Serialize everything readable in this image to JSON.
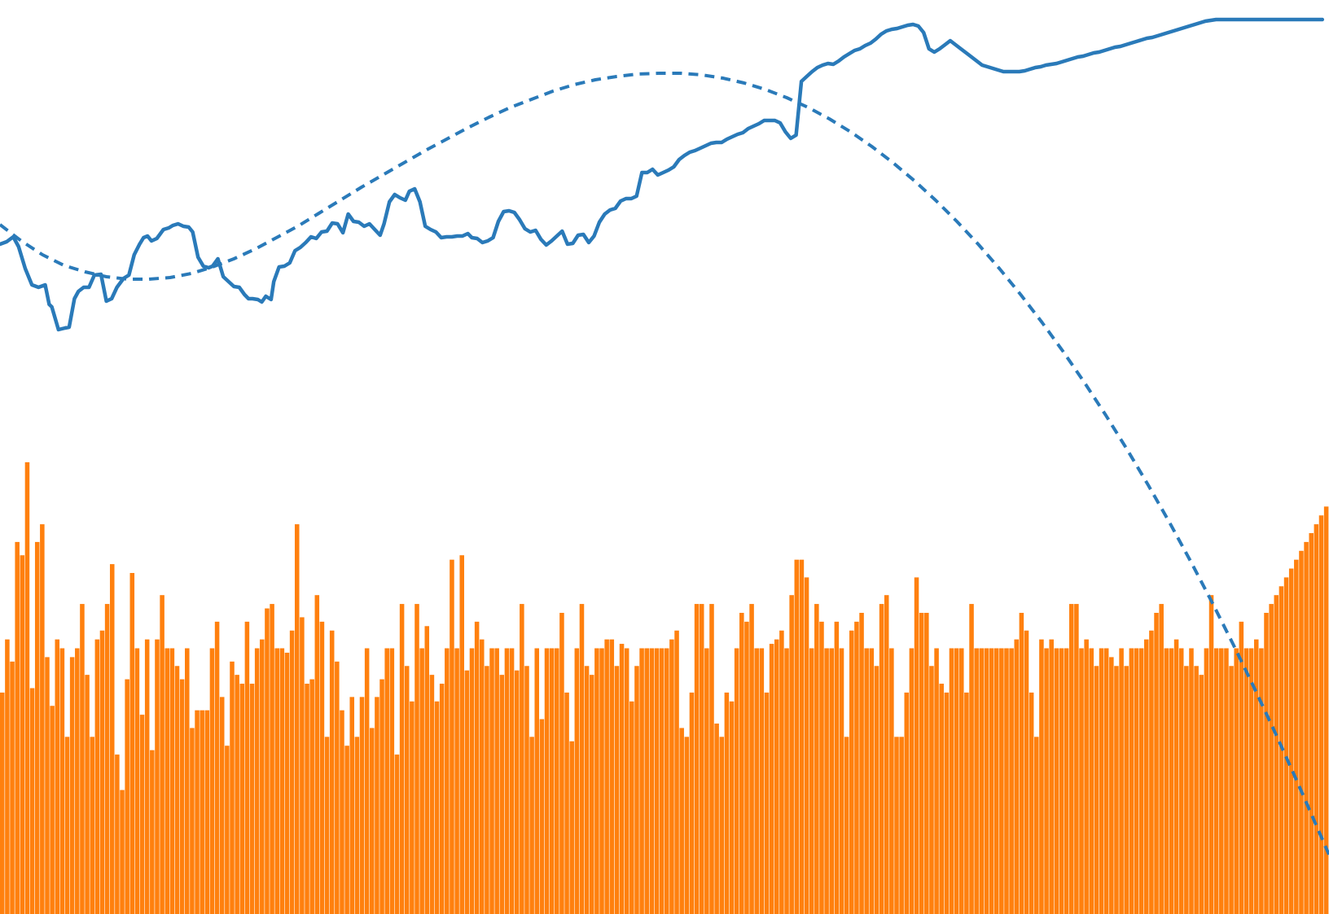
{
  "chart_data": {
    "type": "line",
    "title": "",
    "xlabel": "",
    "ylabel": "",
    "grid": false,
    "legend": "none",
    "x_count": 266,
    "colors": {
      "price": "#2a7ab9",
      "trend": "#2a7ab9",
      "volume": "#ff800e"
    },
    "price_series": [
      [
        0,
        300
      ],
      [
        5,
        297
      ],
      [
        10,
        291
      ],
      [
        14,
        303
      ],
      [
        19,
        330
      ],
      [
        24,
        350
      ],
      [
        29,
        353
      ],
      [
        34,
        350
      ],
      [
        37,
        374
      ],
      [
        39,
        377
      ],
      [
        44,
        405
      ],
      [
        49,
        403
      ],
      [
        52,
        402
      ],
      [
        56,
        367
      ],
      [
        59,
        358
      ],
      [
        63,
        353
      ],
      [
        67,
        353
      ],
      [
        71,
        338
      ],
      [
        76,
        337
      ],
      [
        80,
        370
      ],
      [
        84,
        367
      ],
      [
        88,
        353
      ],
      [
        93,
        342
      ],
      [
        97,
        338
      ],
      [
        101,
        313
      ],
      [
        105,
        300
      ],
      [
        108,
        292
      ],
      [
        111,
        290
      ],
      [
        114,
        296
      ],
      [
        118,
        293
      ],
      [
        123,
        282
      ],
      [
        127,
        280
      ],
      [
        130,
        277
      ],
      [
        134,
        275
      ],
      [
        138,
        278
      ],
      [
        142,
        279
      ],
      [
        145,
        285
      ],
      [
        149,
        316
      ],
      [
        153,
        327
      ],
      [
        157,
        329
      ],
      [
        160,
        327
      ],
      [
        164,
        318
      ],
      [
        168,
        340
      ],
      [
        172,
        346
      ],
      [
        176,
        352
      ],
      [
        180,
        353
      ],
      [
        184,
        362
      ],
      [
        187,
        367
      ],
      [
        190,
        367
      ],
      [
        194,
        368
      ],
      [
        197,
        371
      ],
      [
        200,
        364
      ],
      [
        204,
        368
      ],
      [
        206,
        346
      ],
      [
        210,
        328
      ],
      [
        214,
        327
      ],
      [
        218,
        323
      ],
      [
        222,
        308
      ],
      [
        226,
        304
      ],
      [
        230,
        298
      ],
      [
        234,
        291
      ],
      [
        238,
        293
      ],
      [
        242,
        285
      ],
      [
        246,
        284
      ],
      [
        250,
        274
      ],
      [
        254,
        275
      ],
      [
        258,
        286
      ],
      [
        262,
        263
      ],
      [
        266,
        272
      ],
      [
        270,
        273
      ],
      [
        274,
        278
      ],
      [
        278,
        275
      ],
      [
        282,
        282
      ],
      [
        286,
        289
      ],
      [
        289,
        275
      ],
      [
        293,
        248
      ],
      [
        297,
        239
      ],
      [
        301,
        243
      ],
      [
        305,
        246
      ],
      [
        308,
        235
      ],
      [
        312,
        232
      ],
      [
        316,
        248
      ],
      [
        320,
        278
      ],
      [
        324,
        282
      ],
      [
        328,
        285
      ],
      [
        332,
        292
      ],
      [
        336,
        291
      ],
      [
        340,
        291
      ],
      [
        344,
        290
      ],
      [
        348,
        290
      ],
      [
        352,
        287
      ],
      [
        355,
        292
      ],
      [
        359,
        293
      ],
      [
        363,
        298
      ],
      [
        367,
        296
      ],
      [
        371,
        292
      ],
      [
        375,
        272
      ],
      [
        379,
        260
      ],
      [
        383,
        259
      ],
      [
        387,
        261
      ],
      [
        391,
        270
      ],
      [
        395,
        281
      ],
      [
        399,
        285
      ],
      [
        403,
        283
      ],
      [
        407,
        294
      ],
      [
        411,
        301
      ],
      [
        415,
        296
      ],
      [
        419,
        290
      ],
      [
        423,
        284
      ],
      [
        427,
        300
      ],
      [
        431,
        299
      ],
      [
        435,
        289
      ],
      [
        439,
        288
      ],
      [
        443,
        298
      ],
      [
        447,
        290
      ],
      [
        451,
        273
      ],
      [
        455,
        263
      ],
      [
        459,
        258
      ],
      [
        463,
        256
      ],
      [
        467,
        247
      ],
      [
        471,
        244
      ],
      [
        475,
        244
      ],
      [
        479,
        241
      ],
      [
        483,
        212
      ],
      [
        487,
        212
      ],
      [
        491,
        208
      ],
      [
        495,
        215
      ],
      [
        499,
        212
      ],
      [
        503,
        209
      ],
      [
        507,
        205
      ],
      [
        511,
        196
      ],
      [
        515,
        191
      ],
      [
        519,
        187
      ],
      [
        523,
        185
      ],
      [
        527,
        182
      ],
      [
        531,
        179
      ],
      [
        535,
        176
      ],
      [
        539,
        175
      ],
      [
        543,
        175
      ],
      [
        547,
        171
      ],
      [
        551,
        168
      ],
      [
        555,
        165
      ],
      [
        559,
        163
      ],
      [
        563,
        158
      ],
      [
        567,
        155
      ],
      [
        571,
        152
      ],
      [
        575,
        148
      ],
      [
        579,
        148
      ],
      [
        583,
        148
      ],
      [
        587,
        151
      ],
      [
        591,
        162
      ],
      [
        595,
        170
      ],
      [
        599,
        166
      ],
      [
        603,
        100
      ],
      [
        607,
        94
      ],
      [
        611,
        88
      ],
      [
        615,
        83
      ],
      [
        619,
        80
      ],
      [
        623,
        78
      ],
      [
        627,
        79
      ],
      [
        631,
        75
      ],
      [
        635,
        70
      ],
      [
        639,
        66
      ],
      [
        643,
        62
      ],
      [
        647,
        60
      ],
      [
        651,
        56
      ],
      [
        655,
        53
      ],
      [
        659,
        48
      ],
      [
        663,
        42
      ],
      [
        667,
        38
      ],
      [
        671,
        36
      ],
      [
        675,
        35
      ],
      [
        679,
        33
      ],
      [
        683,
        31
      ],
      [
        687,
        30
      ],
      [
        691,
        32
      ],
      [
        695,
        40
      ],
      [
        699,
        60
      ],
      [
        703,
        64
      ],
      [
        707,
        60
      ],
      [
        711,
        55
      ],
      [
        715,
        50
      ],
      [
        719,
        55
      ],
      [
        723,
        60
      ],
      [
        727,
        65
      ],
      [
        731,
        70
      ],
      [
        735,
        75
      ],
      [
        739,
        80
      ],
      [
        743,
        82
      ],
      [
        747,
        84
      ],
      [
        751,
        86
      ],
      [
        755,
        88
      ],
      [
        759,
        88
      ],
      [
        763,
        88
      ],
      [
        767,
        88
      ],
      [
        771,
        87
      ],
      [
        775,
        85
      ],
      [
        779,
        83
      ],
      [
        783,
        82
      ],
      [
        787,
        80
      ],
      [
        791,
        79
      ],
      [
        795,
        78
      ],
      [
        799,
        76
      ],
      [
        803,
        74
      ],
      [
        807,
        72
      ],
      [
        811,
        70
      ],
      [
        815,
        69
      ],
      [
        819,
        67
      ],
      [
        823,
        65
      ],
      [
        827,
        64
      ],
      [
        831,
        62
      ],
      [
        835,
        60
      ],
      [
        839,
        58
      ],
      [
        843,
        57
      ],
      [
        847,
        55
      ],
      [
        851,
        53
      ],
      [
        855,
        51
      ],
      [
        859,
        49
      ],
      [
        863,
        47
      ],
      [
        867,
        46
      ],
      [
        871,
        44
      ],
      [
        875,
        42
      ],
      [
        879,
        40
      ],
      [
        883,
        38
      ],
      [
        887,
        36
      ],
      [
        891,
        34
      ],
      [
        895,
        32
      ],
      [
        899,
        30
      ],
      [
        903,
        28
      ],
      [
        907,
        26
      ],
      [
        911,
        25
      ],
      [
        915,
        24
      ],
      [
        919,
        24
      ],
      [
        923,
        24
      ],
      [
        927,
        24
      ],
      [
        931,
        24
      ],
      [
        935,
        24
      ],
      [
        939,
        24
      ],
      [
        943,
        24
      ],
      [
        947,
        24
      ],
      [
        951,
        24
      ],
      [
        955,
        24
      ],
      [
        959,
        24
      ],
      [
        963,
        24
      ],
      [
        967,
        24
      ],
      [
        971,
        24
      ],
      [
        975,
        24
      ],
      [
        979,
        24
      ],
      [
        983,
        24
      ],
      [
        987,
        24
      ],
      [
        991,
        24
      ],
      [
        995,
        24
      ]
    ],
    "trend_series": [
      [
        0,
        276
      ],
      [
        16,
        296
      ],
      [
        32,
        313
      ],
      [
        48,
        326
      ],
      [
        64,
        334
      ],
      [
        80,
        340
      ],
      [
        96,
        343
      ],
      [
        112,
        343
      ],
      [
        128,
        341
      ],
      [
        144,
        336
      ],
      [
        160,
        328
      ],
      [
        176,
        318
      ],
      [
        192,
        306
      ],
      [
        208,
        292
      ],
      [
        224,
        278
      ],
      [
        240,
        262
      ],
      [
        256,
        246
      ],
      [
        272,
        230
      ],
      [
        288,
        215
      ],
      [
        304,
        200
      ],
      [
        320,
        185
      ],
      [
        336,
        171
      ],
      [
        352,
        157
      ],
      [
        368,
        144
      ],
      [
        384,
        132
      ],
      [
        400,
        122
      ],
      [
        416,
        112
      ],
      [
        432,
        104
      ],
      [
        448,
        98
      ],
      [
        464,
        94
      ],
      [
        480,
        91
      ],
      [
        496,
        90
      ],
      [
        512,
        90
      ],
      [
        528,
        92
      ],
      [
        544,
        96
      ],
      [
        560,
        102
      ],
      [
        576,
        110
      ],
      [
        592,
        120
      ],
      [
        608,
        132
      ],
      [
        624,
        146
      ],
      [
        640,
        162
      ],
      [
        656,
        180
      ],
      [
        672,
        200
      ],
      [
        688,
        222
      ],
      [
        704,
        246
      ],
      [
        720,
        272
      ],
      [
        736,
        300
      ],
      [
        752,
        330
      ],
      [
        768,
        362
      ],
      [
        784,
        396
      ],
      [
        800,
        432
      ],
      [
        816,
        470
      ],
      [
        832,
        510
      ],
      [
        848,
        552
      ],
      [
        864,
        596
      ],
      [
        880,
        642
      ],
      [
        896,
        690
      ],
      [
        912,
        740
      ],
      [
        928,
        792
      ],
      [
        944,
        846
      ],
      [
        960,
        902
      ],
      [
        976,
        960
      ],
      [
        992,
        1020
      ],
      [
        1000,
        1050
      ]
    ],
    "volume": [
      250,
      310,
      285,
      420,
      405,
      510,
      255,
      420,
      440,
      290,
      235,
      310,
      300,
      200,
      290,
      300,
      350,
      270,
      200,
      310,
      320,
      350,
      395,
      180,
      140,
      265,
      385,
      300,
      225,
      310,
      185,
      310,
      360,
      300,
      300,
      280,
      265,
      300,
      210,
      230,
      230,
      230,
      300,
      330,
      245,
      190,
      285,
      270,
      260,
      330,
      260,
      300,
      310,
      345,
      350,
      300,
      300,
      295,
      320,
      440,
      335,
      260,
      265,
      360,
      330,
      200,
      320,
      285,
      230,
      190,
      245,
      200,
      245,
      300,
      210,
      245,
      265,
      300,
      300,
      180,
      350,
      280,
      240,
      350,
      300,
      325,
      270,
      240,
      260,
      300,
      400,
      300,
      405,
      275,
      300,
      330,
      310,
      280,
      300,
      300,
      270,
      300,
      300,
      275,
      350,
      280,
      200,
      300,
      220,
      300,
      300,
      300,
      340,
      250,
      195,
      300,
      350,
      280,
      270,
      300,
      300,
      310,
      310,
      280,
      305,
      300,
      240,
      280,
      300,
      300,
      300,
      300,
      300,
      300,
      310,
      320,
      210,
      200,
      250,
      350,
      350,
      300,
      350,
      215,
      200,
      250,
      240,
      300,
      340,
      330,
      350,
      300,
      300,
      250,
      305,
      310,
      320,
      300,
      360,
      400,
      400,
      380,
      300,
      350,
      330,
      300,
      300,
      330,
      300,
      200,
      320,
      330,
      340,
      300,
      300,
      280,
      350,
      360,
      300,
      200,
      200,
      250,
      300,
      380,
      340,
      340,
      280,
      300,
      260,
      250,
      300,
      300,
      300,
      250,
      350,
      300,
      300,
      300,
      300,
      300,
      300,
      300,
      300,
      310,
      340,
      320,
      250,
      200,
      310,
      300,
      310,
      300,
      300,
      300,
      350,
      350,
      300,
      310,
      300,
      280,
      300,
      300,
      290,
      280,
      300,
      280,
      300,
      300,
      300,
      310,
      320,
      340,
      350,
      300,
      300,
      310,
      300,
      280,
      300,
      280,
      270,
      300,
      360,
      300,
      300,
      300,
      280,
      300,
      330,
      300,
      300,
      310,
      300,
      340,
      350,
      360,
      370,
      380,
      390,
      400,
      410,
      420,
      430,
      440,
      450,
      460
    ]
  }
}
